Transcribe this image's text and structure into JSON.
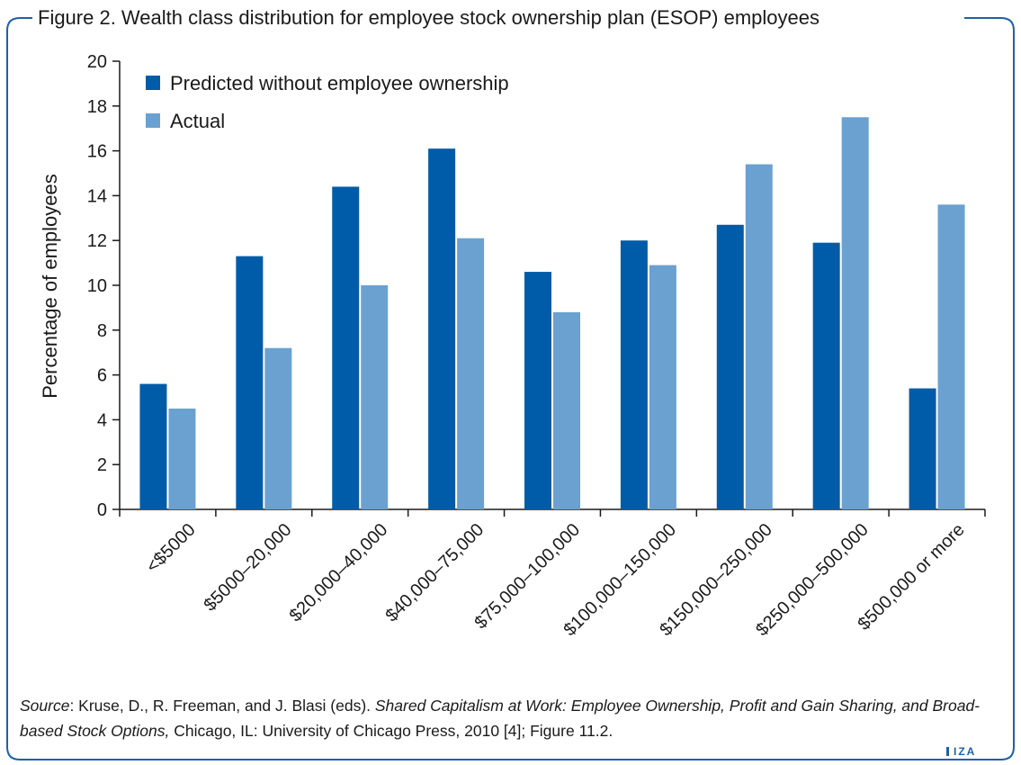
{
  "figure": {
    "title": "Figure 2. Wealth class distribution for employee stock ownership plan (ESOP) employees",
    "source_label": "Source",
    "source_plain1": ": Kruse, D., R. Freeman, and J. Blasi (eds). ",
    "source_italic": "Shared Capitalism at Work: Employee Ownership, Profit and Gain Sharing, and Broad-based Stock Options,",
    "source_plain2": " Chicago, IL: University of Chicago Press, 2010 [4]; Figure 11.2.",
    "logo": "IZA",
    "frame_color": "#1f5fa8"
  },
  "chart_data": {
    "type": "bar",
    "ylabel": "Percentage of employees",
    "xlabel": "",
    "ylim": [
      0,
      20
    ],
    "yticks": [
      "0",
      "2",
      "4",
      "6",
      "8",
      "10",
      "12",
      "14",
      "16",
      "18",
      "20"
    ],
    "grid": false,
    "legend_position": "top-left",
    "categories": [
      "<$5000",
      "$5000–20,000",
      "$20,000–40,000",
      "$40,000–75,000",
      "$75,000–100,000",
      "$100,000–150,000",
      "$150,000–250,000",
      "$250,000–500,000",
      "$500,000 or more"
    ],
    "series": [
      {
        "name": "Predicted without employee ownership",
        "color": "#005ca9",
        "values": [
          5.6,
          11.3,
          14.4,
          16.1,
          10.6,
          12.0,
          12.7,
          11.9,
          5.4
        ]
      },
      {
        "name": "Actual",
        "color": "#6aa1d0",
        "values": [
          4.5,
          7.2,
          10.0,
          12.1,
          8.8,
          10.9,
          15.4,
          17.5,
          13.6
        ]
      }
    ]
  }
}
